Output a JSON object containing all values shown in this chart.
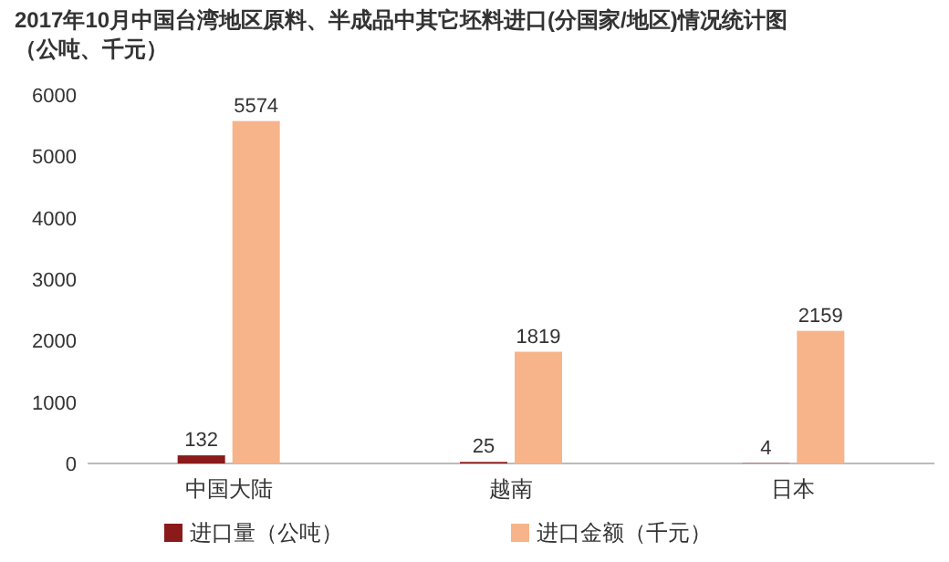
{
  "chart_data": {
    "type": "bar",
    "title": "2017年10月中国台湾地区原料、半成品中其它坯料进口(分国家/地区)情况统计图（公吨、千元）",
    "categories": [
      "中国大陆",
      "越南",
      "日本"
    ],
    "series": [
      {
        "name": "进口量（公吨）",
        "color": "#8b1a1a",
        "values": [
          132,
          25,
          4
        ]
      },
      {
        "name": "进口金额（千元）",
        "color": "#f7b48a",
        "values": [
          5574,
          1819,
          2159
        ]
      }
    ],
    "ylim": [
      0,
      6000
    ],
    "yticks": [
      0,
      1000,
      2000,
      3000,
      4000,
      5000,
      6000
    ],
    "data_labels": true,
    "legend": "bottom",
    "grid": false
  }
}
